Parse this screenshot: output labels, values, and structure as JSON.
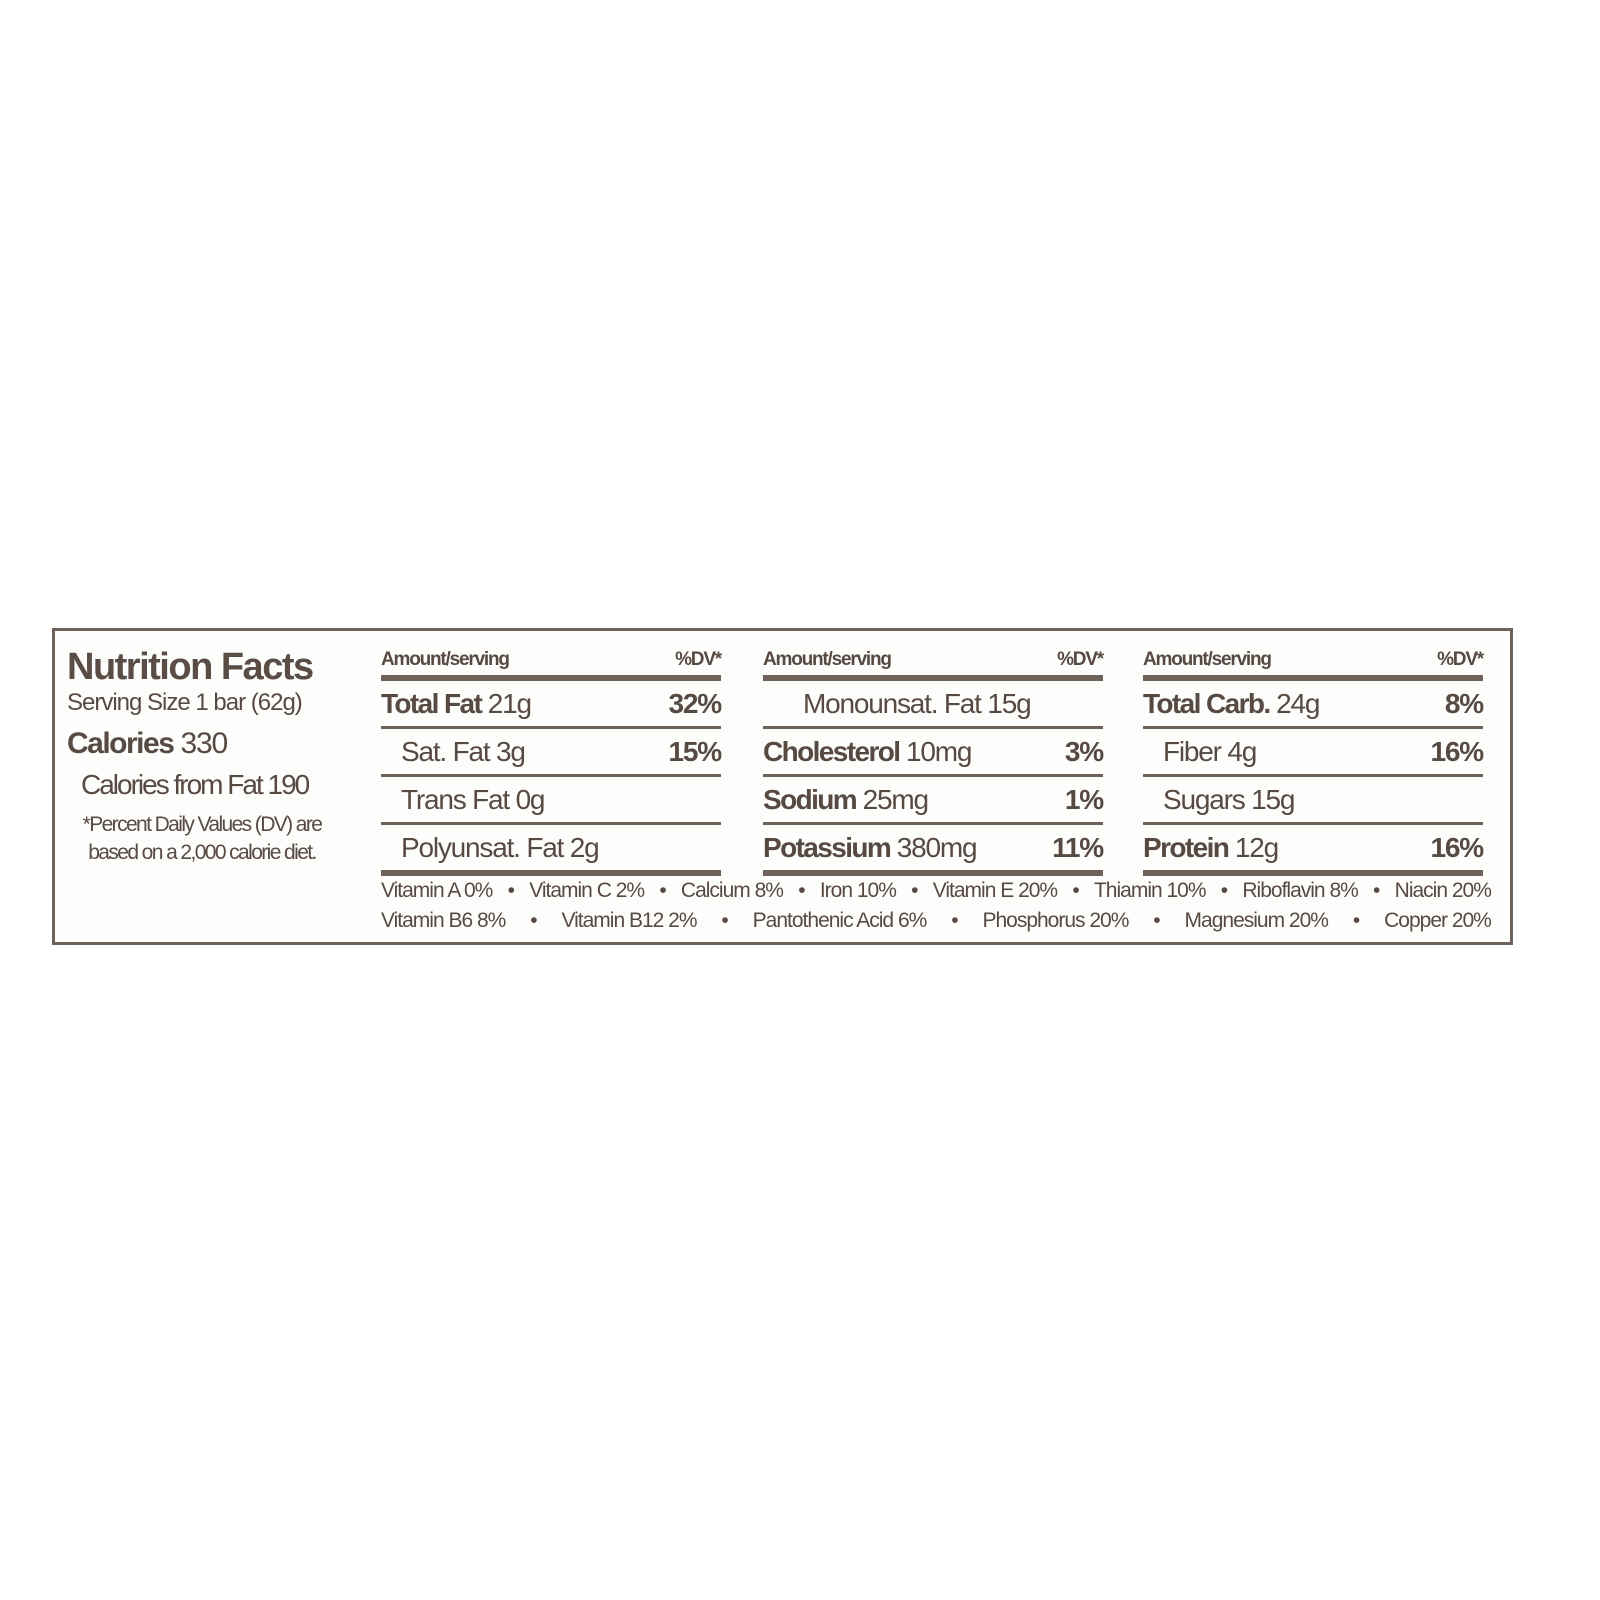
{
  "title": "Nutrition Facts",
  "serving_size": "Serving Size 1 bar (62g)",
  "calories_label": "Calories",
  "calories_value": "330",
  "calories_from_fat": "Calories from Fat 190",
  "footnote_line1": "*Percent Daily Values (DV) are",
  "footnote_line2": "based on a 2,000 calorie diet.",
  "colors": {
    "text": "#574a42",
    "rule": "#6e625a"
  },
  "columns": [
    {
      "header_left": "Amount/serving",
      "header_right": "%DV*",
      "rows": [
        {
          "name": "Total Fat",
          "bold": true,
          "indent": 0,
          "amount": "21g",
          "dv": "32%"
        },
        {
          "name": "Sat. Fat",
          "bold": false,
          "indent": 1,
          "amount": "3g",
          "dv": "15%"
        },
        {
          "name": "Trans Fat",
          "bold": false,
          "indent": 1,
          "amount": "0g",
          "dv": ""
        },
        {
          "name": "Polyunsat. Fat",
          "bold": false,
          "indent": 1,
          "amount": "2g",
          "dv": ""
        }
      ]
    },
    {
      "header_left": "Amount/serving",
      "header_right": "%DV*",
      "rows": [
        {
          "name": "Monounsat. Fat",
          "bold": false,
          "indent": 2,
          "amount": "15g",
          "dv": ""
        },
        {
          "name": "Cholesterol",
          "bold": true,
          "indent": 0,
          "amount": "10mg",
          "dv": "3%"
        },
        {
          "name": "Sodium",
          "bold": true,
          "indent": 0,
          "amount": "25mg",
          "dv": "1%"
        },
        {
          "name": "Potassium",
          "bold": true,
          "indent": 0,
          "amount": "380mg",
          "dv": "11%"
        }
      ]
    },
    {
      "header_left": "Amount/serving",
      "header_right": "%DV*",
      "rows": [
        {
          "name": "Total Carb.",
          "bold": true,
          "indent": 0,
          "amount": "24g",
          "dv": "8%"
        },
        {
          "name": "Fiber",
          "bold": false,
          "indent": 1,
          "amount": "4g",
          "dv": "16%"
        },
        {
          "name": "Sugars",
          "bold": false,
          "indent": 1,
          "amount": "15g",
          "dv": ""
        },
        {
          "name": "Protein",
          "bold": true,
          "indent": 0,
          "amount": "12g",
          "dv": "16%"
        }
      ]
    }
  ],
  "vitamins_line1": [
    "Vitamin A 0%",
    "Vitamin C 2%",
    "Calcium 8%",
    "Iron 10%",
    "Vitamin E 20%",
    "Thiamin 10%",
    "Riboflavin 8%",
    "Niacin 20%"
  ],
  "vitamins_line2": [
    "Vitamin B6 8%",
    "Vitamin B12 2%",
    "Pantothenic Acid 6%",
    "Phosphorus 20%",
    "Magnesium 20%",
    "Copper 20%"
  ],
  "separator": "•"
}
